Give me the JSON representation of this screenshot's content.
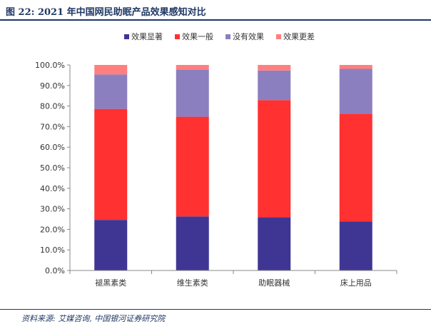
{
  "figure": {
    "title": "图 22:  2021 年中国网民助眠产品效果感知对比",
    "source": "资料来源: 艾媒咨询, 中国银河证券研究院"
  },
  "chart_data": {
    "type": "bar",
    "stacked": true,
    "percent": true,
    "categories": [
      "褪黑素类",
      "维生素类",
      "助眠器械",
      "床上用品"
    ],
    "series": [
      {
        "name": "效果显著",
        "color": "#3f3694",
        "values": [
          24.6,
          26.3,
          25.9,
          23.9
        ]
      },
      {
        "name": "效果一般",
        "color": "#ff3131",
        "values": [
          54.0,
          48.5,
          57.0,
          52.4
        ]
      },
      {
        "name": "没有效果",
        "color": "#8c7fc0",
        "values": [
          16.8,
          22.9,
          14.4,
          21.8
        ]
      },
      {
        "name": "效果更差",
        "color": "#ff7f7f",
        "values": [
          4.6,
          2.3,
          2.7,
          1.9
        ]
      }
    ],
    "ylim": [
      0,
      100
    ],
    "yticks": [
      "0.0%",
      "10.0%",
      "20.0%",
      "30.0%",
      "40.0%",
      "50.0%",
      "60.0%",
      "70.0%",
      "80.0%",
      "90.0%",
      "100.0%"
    ],
    "legend_position": "top-right",
    "grid": false
  }
}
